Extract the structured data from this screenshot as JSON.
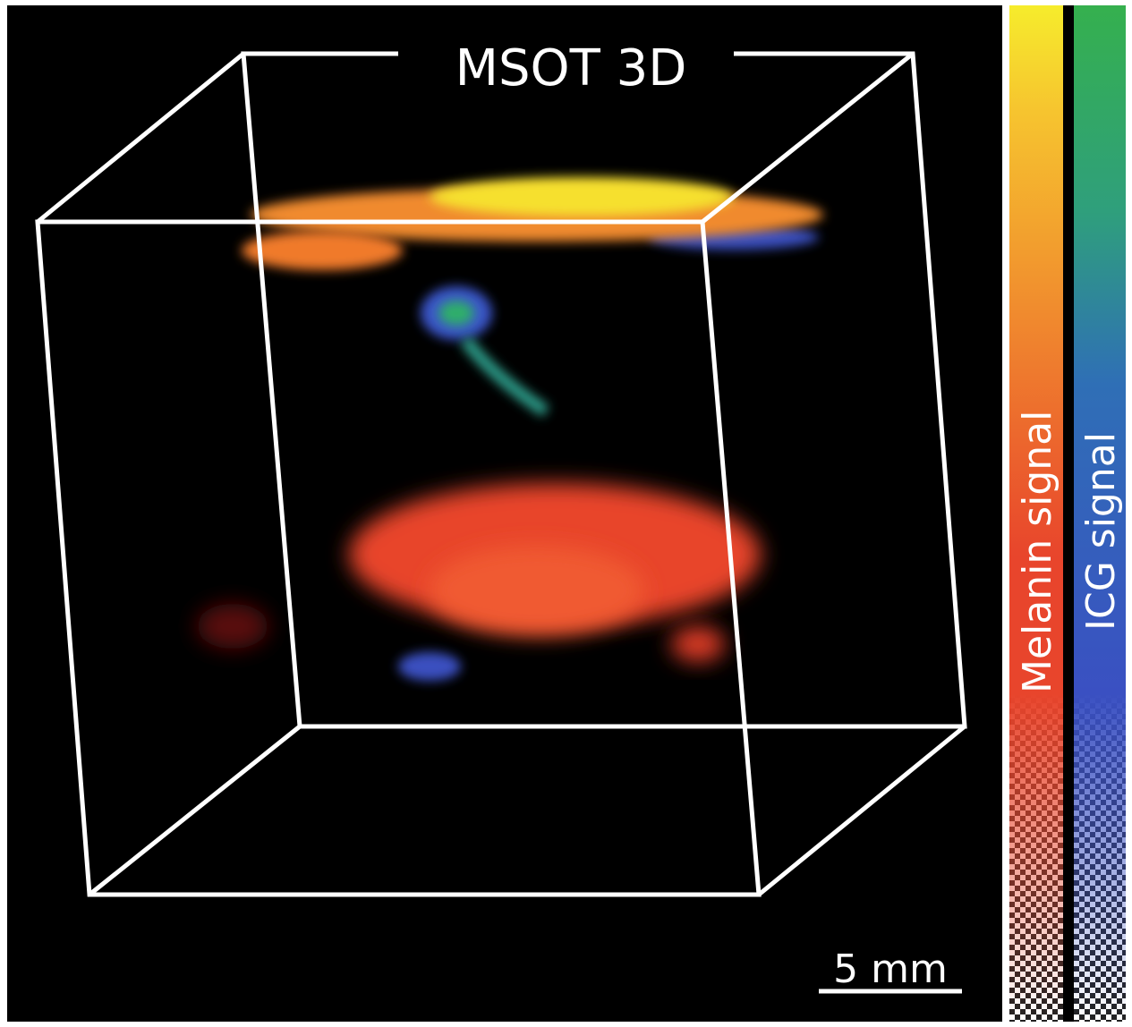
{
  "image": {
    "title": "MSOT 3D",
    "scale_bar": "5 mm",
    "colorbars": [
      {
        "label": "Melanin signal"
      },
      {
        "label": "ICG signal"
      }
    ]
  }
}
